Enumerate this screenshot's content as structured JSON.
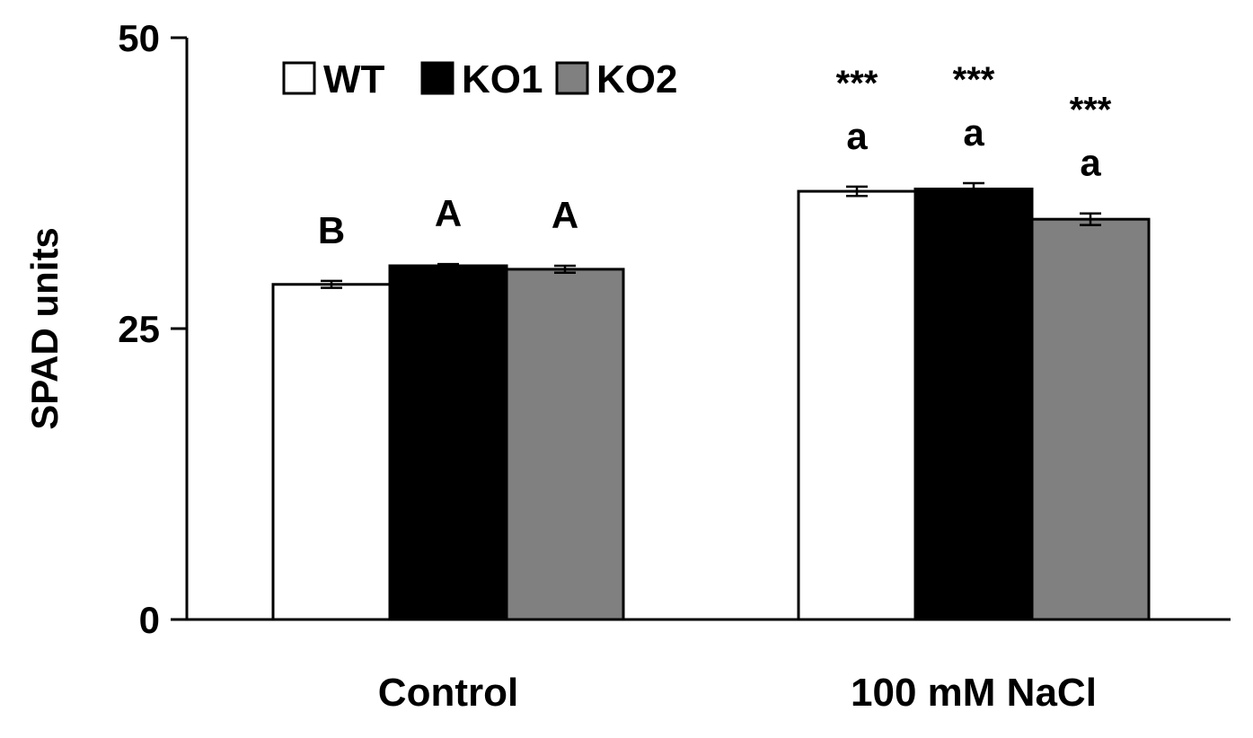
{
  "chart_data": {
    "type": "bar",
    "categories": [
      "Control",
      "100 mM NaCl"
    ],
    "series": [
      {
        "name": "WT",
        "color": "#ffffff",
        "values": [
          28.8,
          36.8
        ],
        "errors": [
          0.3,
          0.4
        ],
        "letters": [
          "B",
          "a"
        ],
        "stars": [
          "",
          "***"
        ]
      },
      {
        "name": "KO1",
        "color": "#000000",
        "values": [
          30.4,
          37.0
        ],
        "errors": [
          0.15,
          0.5
        ],
        "letters": [
          "A",
          "a"
        ],
        "stars": [
          "",
          "***"
        ]
      },
      {
        "name": "KO2",
        "color": "#808080",
        "values": [
          30.1,
          34.4
        ],
        "errors": [
          0.3,
          0.5
        ],
        "letters": [
          "A",
          "a"
        ],
        "stars": [
          "",
          "***"
        ]
      }
    ],
    "ylabel": "SPAD units",
    "xlabel": "",
    "ylim": [
      0,
      50
    ],
    "yticks": [
      "0",
      "25",
      "50"
    ],
    "legend_position": "top-left"
  }
}
